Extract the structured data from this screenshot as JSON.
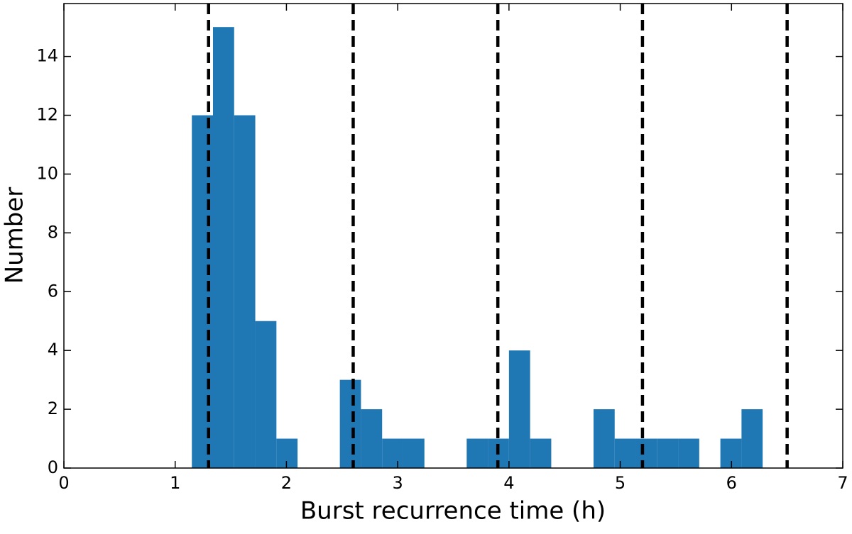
{
  "chart_data": {
    "type": "histogram",
    "xlabel": "Burst recurrence time (h)",
    "ylabel": "Number",
    "bins": [
      1.15,
      1.34,
      1.53,
      1.72,
      1.91,
      2.1,
      2.29,
      2.48,
      2.67,
      2.86,
      3.05,
      3.24,
      3.43,
      3.62,
      3.81,
      4.0,
      4.19,
      4.38,
      4.57,
      4.76,
      4.95,
      5.14,
      5.33,
      5.52,
      5.71,
      5.9,
      6.09,
      6.28
    ],
    "values": [
      12,
      15,
      12,
      5,
      1,
      0,
      0,
      3,
      2,
      1,
      1,
      0,
      0,
      1,
      1,
      4,
      1,
      0,
      0,
      2,
      1,
      1,
      1,
      1,
      0,
      1,
      2
    ],
    "color": "#1f77b4",
    "vlines": [
      1.3,
      2.6,
      3.9,
      5.2,
      6.5
    ],
    "vline_color": "#000000",
    "xlim": [
      0,
      7
    ],
    "xticks": [
      0,
      1,
      2,
      3,
      4,
      5,
      6,
      7
    ],
    "ylim": [
      0,
      15.8
    ],
    "yticks": [
      0,
      2,
      4,
      6,
      8,
      10,
      12,
      14
    ],
    "grid": false
  }
}
